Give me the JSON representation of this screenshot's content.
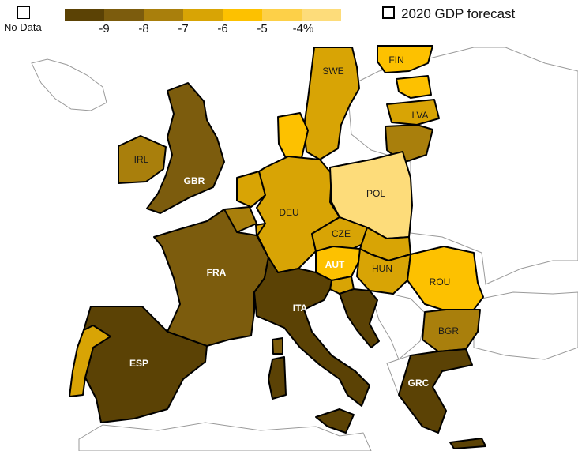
{
  "legend": {
    "no_data_label": "No Data",
    "forecast_label": "2020 GDP forecast",
    "scale_colors": [
      "#5b4205",
      "#7c5c0d",
      "#a97f0c",
      "#d8a405",
      "#fdc100",
      "#fdd048",
      "#fddc7a"
    ],
    "ticks": [
      "-9",
      "-8",
      "-7",
      "-6",
      "-5",
      "-4%"
    ]
  },
  "colors": {
    "no_data": "#ffffff",
    "border": "#000000",
    "neighbor_border": "#9a9a9a"
  },
  "countries": {
    "FIN": "FIN",
    "SWE": "SWE",
    "LVA": "LVA",
    "IRL": "IRL",
    "GBR": "GBR",
    "DEU": "DEU",
    "POL": "POL",
    "CZE": "CZE",
    "AUT": "AUT",
    "HUN": "HUN",
    "FRA": "FRA",
    "ROU": "ROU",
    "ITA": "ITA",
    "BGR": "BGR",
    "ESP": "ESP",
    "GRC": "GRC"
  }
}
